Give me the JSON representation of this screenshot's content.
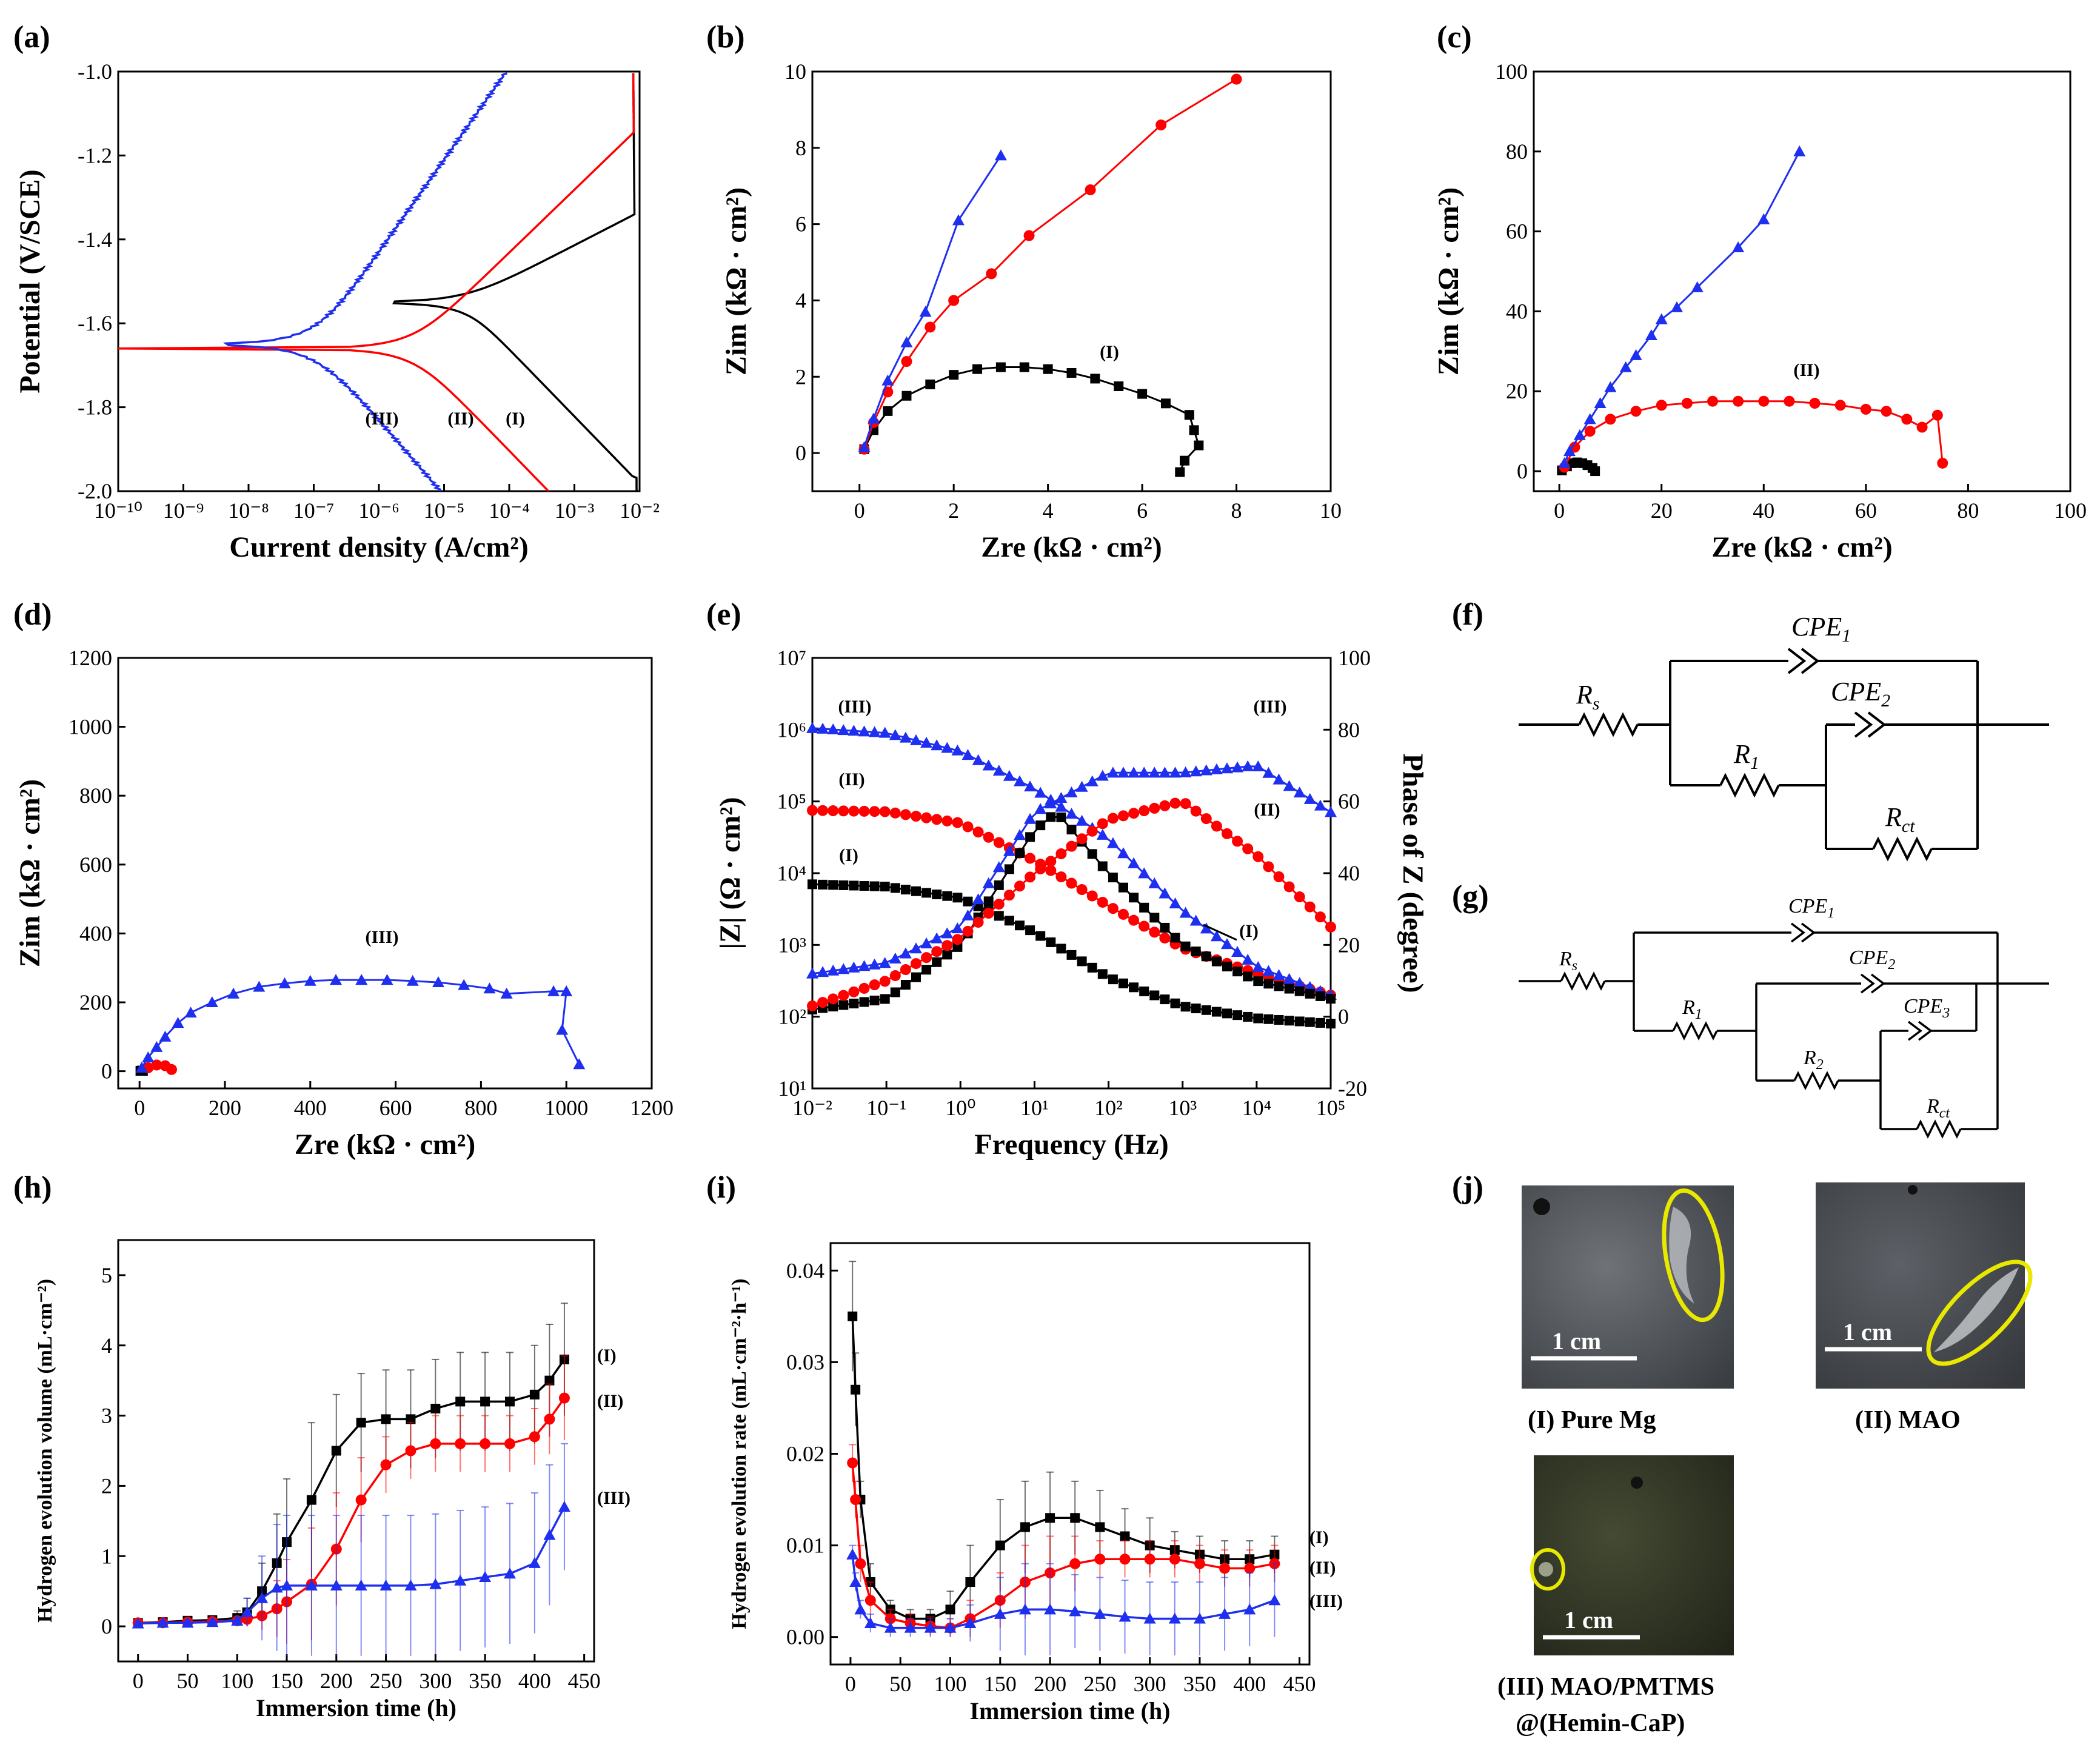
{
  "figure": {
    "panel_labels": [
      "(a)",
      "(b)",
      "(c)",
      "(d)",
      "(e)",
      "(f)",
      "(g)",
      "(h)",
      "(i)",
      "(j)"
    ],
    "series_names": [
      "(I)",
      "(II)",
      "(III)"
    ],
    "series_colors": [
      "#000000",
      "#ff0000",
      "#1f2ff0"
    ],
    "photos": {
      "scale_label": "1 cm",
      "captions": [
        "(I) Pure Mg",
        "(II) MAO",
        "(III) MAO/PMTMS",
        "@(Hemin-CaP)"
      ],
      "highlight_color": "#e8e800"
    }
  },
  "chart_data": [
    {
      "panel": "(a)",
      "type": "line",
      "xlabel": "Current density (A/cm²)",
      "ylabel": "Potential (V/SCE)",
      "xscale": "log",
      "xlim": [
        1e-10,
        0.01
      ],
      "ylim": [
        -2.0,
        -1.0
      ],
      "x_ticks": [
        "10⁻¹⁰",
        "10⁻⁹",
        "10⁻⁸",
        "10⁻⁷",
        "10⁻⁶",
        "10⁻⁵",
        "10⁻⁴",
        "10⁻³",
        "10⁻²"
      ],
      "y_ticks": [
        "-2.0",
        "-1.8",
        "-1.6",
        "-1.4",
        "-1.2",
        "-1.0"
      ],
      "series": [
        {
          "name": "(I)",
          "corrosion_potential": -1.55,
          "corrosion_current": 2e-05
        },
        {
          "name": "(II)",
          "corrosion_potential": -1.66,
          "corrosion_current": 3e-06
        },
        {
          "name": "(III)",
          "corrosion_potential": -1.65,
          "corrosion_current": 1e-07
        }
      ],
      "annotations": [
        "(III)",
        "(II)",
        "(I)"
      ]
    },
    {
      "panel": "(b)",
      "type": "scatter",
      "xlabel": "Zre (kΩ · cm²)",
      "ylabel": "Zim (kΩ · cm²)",
      "xlim": [
        -1,
        10
      ],
      "ylim": [
        -1,
        10
      ],
      "x_ticks": [
        "0",
        "2",
        "4",
        "6",
        "8",
        "10"
      ],
      "y_ticks": [
        "0",
        "2",
        "4",
        "6",
        "8",
        "10"
      ],
      "series": [
        {
          "name": "(I)",
          "x": [
            0.1,
            0.3,
            0.6,
            1.0,
            1.5,
            2.0,
            2.5,
            3.0,
            3.5,
            4.0,
            4.5,
            5.0,
            5.5,
            6.0,
            6.5,
            7.0,
            7.1,
            7.2,
            6.9,
            6.8
          ],
          "y": [
            0.1,
            0.6,
            1.1,
            1.5,
            1.8,
            2.05,
            2.2,
            2.25,
            2.25,
            2.2,
            2.1,
            1.95,
            1.75,
            1.55,
            1.3,
            1.0,
            0.6,
            0.2,
            -0.2,
            -0.5
          ]
        },
        {
          "name": "(II)",
          "x": [
            0.1,
            0.3,
            0.6,
            1.0,
            1.5,
            2.0,
            2.8,
            3.6,
            4.9,
            6.4,
            8.0
          ],
          "y": [
            0.1,
            0.8,
            1.6,
            2.4,
            3.3,
            4.0,
            4.7,
            5.7,
            6.9,
            8.6,
            9.8
          ]
        },
        {
          "name": "(III)",
          "x": [
            0.1,
            0.3,
            0.6,
            1.0,
            1.4,
            2.1,
            3.0
          ],
          "y": [
            0.15,
            0.9,
            1.9,
            2.9,
            3.7,
            6.1,
            7.8
          ]
        }
      ],
      "annotations": [
        "(I)"
      ]
    },
    {
      "panel": "(c)",
      "type": "scatter",
      "xlabel": "Zre (kΩ · cm²)",
      "ylabel": "Zim (kΩ · cm²)",
      "xlim": [
        -5,
        100
      ],
      "ylim": [
        -5,
        100
      ],
      "x_ticks": [
        "0",
        "20",
        "40",
        "60",
        "80",
        "100"
      ],
      "y_ticks": [
        "0",
        "20",
        "40",
        "60",
        "80",
        "100"
      ],
      "series": [
        {
          "name": "(I)",
          "x": [
            0.5,
            1.5,
            2.5,
            3.5,
            4.5,
            5.5,
            6.5,
            7.0
          ],
          "y": [
            0.2,
            1.2,
            2.0,
            2.2,
            2.0,
            1.5,
            0.8,
            0
          ]
        },
        {
          "name": "(II)",
          "x": [
            1,
            3,
            6,
            10,
            15,
            20,
            25,
            30,
            35,
            40,
            45,
            50,
            55,
            60,
            64,
            68,
            71,
            74,
            75
          ],
          "y": [
            1,
            6,
            10,
            13,
            15,
            16.5,
            17,
            17.5,
            17.5,
            17.5,
            17.5,
            17,
            16.5,
            15.5,
            15,
            13,
            11,
            14,
            2
          ]
        },
        {
          "name": "(III)",
          "x": [
            1,
            2,
            4,
            6,
            8,
            10,
            13,
            15,
            18,
            20,
            23,
            27,
            35,
            40,
            47
          ],
          "y": [
            2,
            5,
            9,
            13,
            17,
            21,
            26,
            29,
            34,
            38,
            41,
            46,
            56,
            63,
            80
          ]
        }
      ],
      "annotations": [
        "(II)"
      ]
    },
    {
      "panel": "(d)",
      "type": "scatter",
      "xlabel": "Zre (kΩ · cm²)",
      "ylabel": "Zim (kΩ · cm²)",
      "xlim": [
        -50,
        1200
      ],
      "ylim": [
        -50,
        1200
      ],
      "x_ticks": [
        "0",
        "200",
        "400",
        "600",
        "800",
        "1000",
        "1200"
      ],
      "y_ticks": [
        "0",
        "200",
        "400",
        "600",
        "800",
        "1000",
        "1200"
      ],
      "series": [
        {
          "name": "(I)",
          "x": [
            2,
            5,
            8
          ],
          "y": [
            1,
            2,
            1
          ]
        },
        {
          "name": "(II)",
          "x": [
            20,
            40,
            60,
            75
          ],
          "y": [
            10,
            18,
            16,
            5
          ]
        },
        {
          "name": "(III)",
          "x": [
            5,
            20,
            40,
            60,
            90,
            120,
            170,
            220,
            280,
            340,
            400,
            460,
            520,
            580,
            640,
            700,
            760,
            820,
            860,
            970,
            1000,
            990,
            1030
          ],
          "y": [
            10,
            40,
            70,
            100,
            140,
            170,
            200,
            225,
            245,
            255,
            262,
            265,
            265,
            265,
            262,
            258,
            250,
            240,
            225,
            232,
            232,
            120,
            20
          ]
        }
      ],
      "annotations": [
        "(III)"
      ]
    },
    {
      "panel": "(e)",
      "type": "line",
      "xlabel": "Frequency (Hz)",
      "ylabel": "|Z| (Ω · cm²)",
      "y2label": "Phase of Z (degree)",
      "xscale": "log",
      "xlim": [
        0.01,
        100000
      ],
      "ylim": [
        10,
        10000000
      ],
      "y2lim": [
        -20,
        100
      ],
      "x_ticks": [
        "10⁻²",
        "10⁻¹",
        "10⁰",
        "10¹",
        "10²",
        "10³",
        "10⁴",
        "10⁵"
      ],
      "y_ticks": [
        "10¹",
        "10²",
        "10³",
        "10⁴",
        "10⁵",
        "10⁶",
        "10⁷"
      ],
      "y2_ticks": [
        "-20",
        "0",
        "20",
        "40",
        "60",
        "80",
        "100"
      ],
      "series": [
        {
          "name": "(I) |Z|",
          "x": [
            0.01,
            0.1,
            1,
            10,
            100,
            1000,
            10000,
            100000
          ],
          "y": [
            7000,
            6500,
            4500,
            1500,
            350,
            140,
            95,
            80
          ]
        },
        {
          "name": "(II) |Z|",
          "x": [
            0.01,
            0.1,
            1,
            10,
            100,
            1000,
            10000,
            100000
          ],
          "y": [
            75000,
            72000,
            50000,
            15000,
            3500,
            900,
            400,
            200
          ]
        },
        {
          "name": "(III) |Z|",
          "x": [
            0.01,
            0.1,
            1,
            10,
            100,
            1000,
            10000,
            100000
          ],
          "y": [
            1050000,
            900000,
            500000,
            150000,
            30000,
            3000,
            500,
            200
          ]
        },
        {
          "name": "(I) phase",
          "x": [
            0.01,
            0.1,
            1,
            10,
            20,
            100,
            1000,
            10000,
            100000
          ],
          "y": [
            2,
            5,
            20,
            52,
            57,
            40,
            20,
            10,
            5
          ]
        },
        {
          "name": "(II) phase",
          "x": [
            0.01,
            0.1,
            1,
            10,
            100,
            1000,
            10000,
            100000
          ],
          "y": [
            3,
            10,
            22,
            40,
            55,
            60,
            45,
            25
          ]
        },
        {
          "name": "(III) phase",
          "x": [
            0.01,
            0.1,
            1,
            10,
            100,
            1000,
            10000,
            100000
          ],
          "y": [
            12,
            15,
            25,
            57,
            68,
            68,
            70,
            57
          ]
        }
      ],
      "annotations": [
        "(III)",
        "(II)",
        "(I)",
        "(III)",
        "(II)",
        "(I)"
      ]
    },
    {
      "panel": "(f)",
      "type": "diagram",
      "components": [
        "Rs",
        "CPE1",
        "R1",
        "CPE2",
        "Rct"
      ]
    },
    {
      "panel": "(g)",
      "type": "diagram",
      "components": [
        "Rs",
        "CPE1",
        "R1",
        "CPE2",
        "R2",
        "CPE3",
        "Rct"
      ]
    },
    {
      "panel": "(h)",
      "type": "line",
      "xlabel": "Immersion time (h)",
      "ylabel": "Hydrogen evolution volume (mL·cm⁻²)",
      "xlim": [
        -20,
        460
      ],
      "ylim": [
        -0.5,
        5.5
      ],
      "x_ticks": [
        "0",
        "50",
        "100",
        "150",
        "200",
        "250",
        "300",
        "350",
        "400",
        "450"
      ],
      "y_ticks": [
        "0",
        "1",
        "2",
        "3",
        "4",
        "5"
      ],
      "x": [
        0,
        25,
        50,
        75,
        100,
        110,
        125,
        140,
        150,
        175,
        200,
        225,
        250,
        275,
        300,
        325,
        350,
        375,
        400,
        415,
        430
      ],
      "series": [
        {
          "name": "(I)",
          "values": [
            0.05,
            0.06,
            0.08,
            0.09,
            0.12,
            0.2,
            0.5,
            0.9,
            1.2,
            1.8,
            2.5,
            2.9,
            2.95,
            2.95,
            3.1,
            3.2,
            3.2,
            3.2,
            3.3,
            3.5,
            3.8
          ],
          "error": [
            0.05,
            0.05,
            0.05,
            0.05,
            0.1,
            0.2,
            0.4,
            0.7,
            0.9,
            1.1,
            0.8,
            0.7,
            0.7,
            0.7,
            0.7,
            0.7,
            0.7,
            0.7,
            0.7,
            0.8,
            0.8
          ]
        },
        {
          "name": "(II)",
          "values": [
            0.05,
            0.05,
            0.06,
            0.07,
            0.08,
            0.1,
            0.15,
            0.25,
            0.35,
            0.6,
            1.1,
            1.8,
            2.3,
            2.5,
            2.6,
            2.6,
            2.6,
            2.6,
            2.7,
            2.95,
            3.25
          ],
          "error": [
            0.05,
            0.05,
            0.05,
            0.05,
            0.05,
            0.1,
            0.2,
            0.4,
            0.6,
            0.8,
            0.8,
            0.6,
            0.4,
            0.4,
            0.4,
            0.4,
            0.4,
            0.4,
            0.4,
            0.5,
            0.6
          ]
        },
        {
          "name": "(III)",
          "values": [
            0.04,
            0.05,
            0.05,
            0.06,
            0.08,
            0.2,
            0.4,
            0.55,
            0.58,
            0.58,
            0.58,
            0.58,
            0.58,
            0.58,
            0.6,
            0.65,
            0.7,
            0.75,
            0.9,
            1.3,
            1.7
          ],
          "error": [
            0.03,
            0.03,
            0.03,
            0.03,
            0.05,
            0.2,
            0.6,
            0.9,
            1.0,
            1.0,
            1.0,
            1.0,
            1.0,
            1.0,
            1.0,
            1.0,
            1.0,
            1.0,
            1.0,
            1.0,
            0.9
          ]
        }
      ],
      "annotations": [
        "(I)",
        "(II)",
        "(III)"
      ]
    },
    {
      "panel": "(i)",
      "type": "line",
      "xlabel": "Immersion time (h)",
      "ylabel": "Hydrogen evolution rate (mL·cm⁻²·h⁻¹)",
      "xlim": [
        -20,
        460
      ],
      "ylim": [
        -0.003,
        0.043
      ],
      "x_ticks": [
        "0",
        "50",
        "100",
        "150",
        "200",
        "250",
        "300",
        "350",
        "400",
        "450"
      ],
      "y_ticks": [
        "0.00",
        "0.01",
        "0.02",
        "0.03",
        "0.04"
      ],
      "x": [
        2,
        5,
        10,
        20,
        40,
        60,
        80,
        100,
        120,
        150,
        175,
        200,
        225,
        250,
        275,
        300,
        325,
        350,
        375,
        400,
        425
      ],
      "series": [
        {
          "name": "(I)",
          "values": [
            0.035,
            0.027,
            0.015,
            0.006,
            0.003,
            0.002,
            0.002,
            0.003,
            0.006,
            0.01,
            0.012,
            0.013,
            0.013,
            0.012,
            0.011,
            0.01,
            0.0095,
            0.009,
            0.0085,
            0.0085,
            0.009
          ],
          "error": [
            0.006,
            0.004,
            0.002,
            0.002,
            0.001,
            0.001,
            0.001,
            0.002,
            0.004,
            0.005,
            0.005,
            0.005,
            0.004,
            0.004,
            0.003,
            0.003,
            0.002,
            0.002,
            0.002,
            0.002,
            0.002
          ]
        },
        {
          "name": "(II)",
          "values": [
            0.019,
            0.015,
            0.008,
            0.004,
            0.002,
            0.0015,
            0.0012,
            0.001,
            0.002,
            0.004,
            0.006,
            0.007,
            0.008,
            0.0085,
            0.0085,
            0.0085,
            0.0085,
            0.008,
            0.0075,
            0.0075,
            0.008
          ],
          "error": [
            0.002,
            0.002,
            0.002,
            0.002,
            0.001,
            0.001,
            0.001,
            0.001,
            0.002,
            0.003,
            0.004,
            0.004,
            0.003,
            0.002,
            0.002,
            0.002,
            0.002,
            0.002,
            0.002,
            0.002,
            0.002
          ]
        },
        {
          "name": "(III)",
          "values": [
            0.009,
            0.006,
            0.003,
            0.0015,
            0.001,
            0.001,
            0.001,
            0.001,
            0.0015,
            0.0025,
            0.003,
            0.003,
            0.0028,
            0.0025,
            0.0022,
            0.002,
            0.002,
            0.002,
            0.0025,
            0.003,
            0.004
          ],
          "error": [
            0.001,
            0.001,
            0.001,
            0.001,
            0.001,
            0.001,
            0.001,
            0.001,
            0.002,
            0.004,
            0.005,
            0.005,
            0.004,
            0.004,
            0.004,
            0.004,
            0.004,
            0.004,
            0.004,
            0.004,
            0.004
          ]
        }
      ],
      "annotations": [
        "(I)",
        "(II)",
        "(III)"
      ]
    }
  ]
}
